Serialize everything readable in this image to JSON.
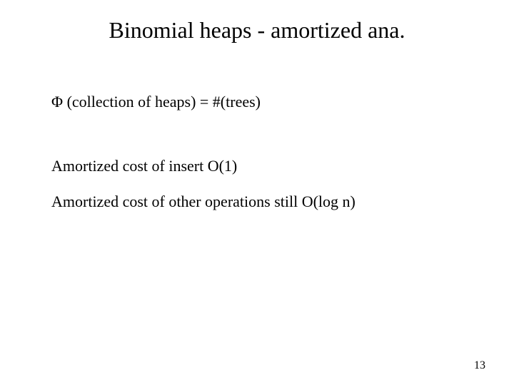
{
  "title": {
    "text": "Binomial heaps - amortized ana.",
    "fontsize": 32,
    "color": "#000000"
  },
  "lines": {
    "phi": {
      "text": "Φ (collection of heaps) = #(trees)",
      "fontsize": 22,
      "color": "#000000"
    },
    "insert": {
      "text": "Amortized cost of insert O(1)",
      "fontsize": 22,
      "color": "#000000"
    },
    "other": {
      "text": "Amortized cost of other operations still O(log n)",
      "fontsize": 22,
      "color": "#000000"
    }
  },
  "page_number": {
    "text": "13",
    "fontsize": 16,
    "color": "#000000"
  },
  "background_color": "#ffffff",
  "font_family": "Times New Roman"
}
